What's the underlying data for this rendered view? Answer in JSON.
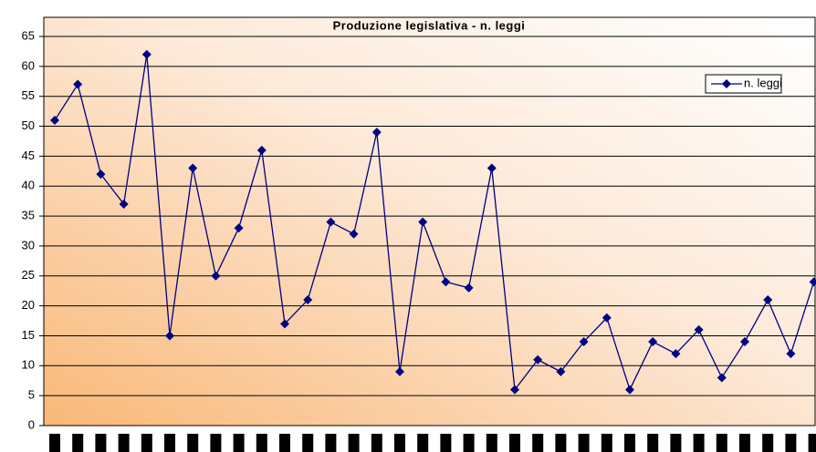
{
  "chart_data": {
    "type": "line",
    "title": "Produzione legislativa - n. leggi",
    "categories": [
      null,
      null,
      null,
      null,
      null,
      null,
      null,
      null,
      null,
      null,
      null,
      null,
      null,
      null,
      null,
      null,
      null,
      null,
      null,
      null,
      null,
      null,
      null,
      null,
      null,
      null,
      null,
      null,
      null,
      null,
      null,
      null,
      null,
      null
    ],
    "series": [
      {
        "name": "n. leggi",
        "color": "#000080",
        "values": [
          51,
          57,
          42,
          37,
          62,
          15,
          43,
          25,
          33,
          46,
          17,
          21,
          34,
          32,
          49,
          9,
          34,
          24,
          23,
          43,
          6,
          11,
          9,
          14,
          18,
          6,
          14,
          12,
          16,
          8,
          14,
          21,
          12,
          24
        ]
      }
    ],
    "ylim": [
      0,
      65
    ],
    "yticks": [
      0,
      5,
      10,
      15,
      20,
      25,
      30,
      35,
      40,
      45,
      50,
      55,
      60,
      65
    ],
    "grid": true,
    "legend": "upper right"
  }
}
